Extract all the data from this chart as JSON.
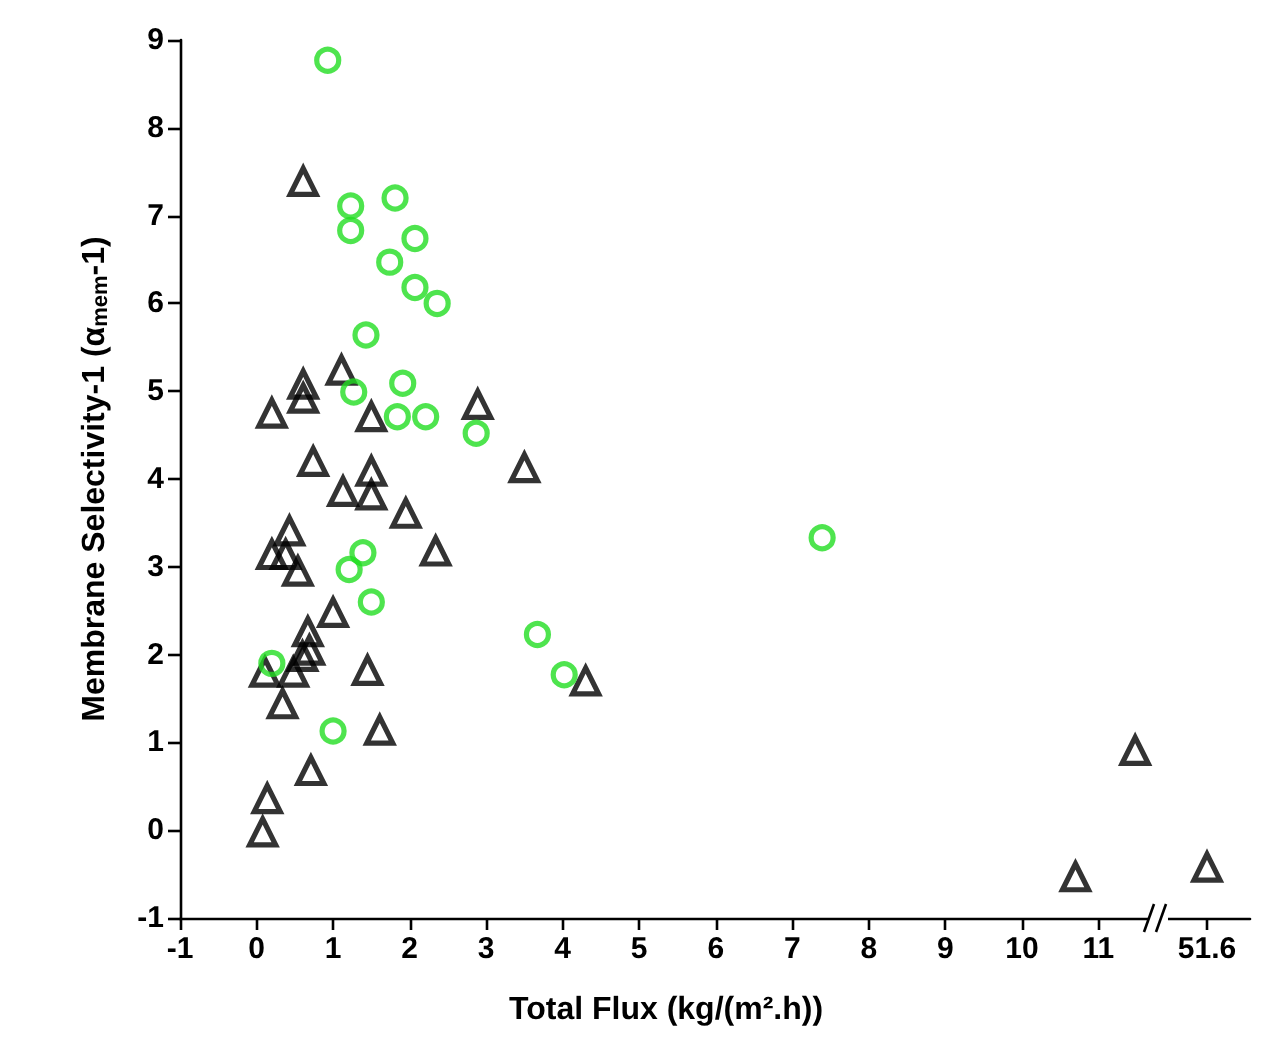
{
  "chart_data": [
    {
      "type": "scatter",
      "xlabel": "Total Flux (kg/(m².h))",
      "ylabel": "Membrane Selectivity-1 (α$_{mem}$-1)",
      "xlim": [
        -1,
        11.7
      ],
      "xticks": [
        -1,
        0,
        1,
        2,
        3,
        4,
        5,
        6,
        7,
        8,
        9,
        10,
        11
      ],
      "ylim": [
        -1,
        9
      ],
      "yticks": [
        -1,
        0,
        1,
        2,
        3,
        4,
        5,
        6,
        7,
        8,
        9
      ],
      "series": [
        {
          "color": "#000000",
          "marker": "triangle",
          "x": [
            0.74,
            1.5,
            1.13,
            1.5,
            1.95,
            2.34,
            0.43,
            0.2,
            0.38,
            0.54,
            1.0,
            0.67,
            0.69,
            0.6,
            0.11,
            0.48,
            0.34,
            1.45,
            1.61,
            0.71,
            0.14,
            0.08,
            0.61,
            0.2,
            0.61,
            0.61,
            1.11,
            1.5,
            2.89,
            4.3,
            10.7,
            11.48
          ],
          "values": [
            4.2,
            4.09,
            3.86,
            3.82,
            3.61,
            3.18,
            3.41,
            3.14,
            3.14,
            2.95,
            2.48,
            2.26,
            2.05,
            1.98,
            1.8,
            1.8,
            1.44,
            1.82,
            1.14,
            0.68,
            0.36,
            -0.02,
            7.39,
            4.75,
            5.08,
            4.92,
            5.24,
            4.71,
            4.85,
            1.7,
            -0.53,
            0.91
          ]
        },
        {
          "color": "#000000",
          "marker": "triangle",
          "x": [
            3.5
          ],
          "values": [
            4.13
          ]
        },
        {
          "color": "#22dd22",
          "marker": "circle",
          "x": [
            0.93,
            1.23,
            1.23,
            1.81,
            1.74,
            2.07,
            1.43,
            1.27,
            1.91,
            1.84,
            2.21,
            2.87,
            1.39,
            1.21,
            1.5,
            1.0,
            0.2,
            7.39,
            3.67,
            4.02
          ],
          "values": [
            8.77,
            7.11,
            6.83,
            7.2,
            6.47,
            6.18,
            5.64,
            4.99,
            5.09,
            4.71,
            4.71,
            4.52,
            3.16,
            2.97,
            2.6,
            1.13,
            1.9,
            3.33,
            2.23,
            1.77
          ]
        },
        {
          "color": "#22dd22",
          "marker": "circle",
          "x": [
            2.07,
            2.36
          ],
          "values": [
            6.74,
            6.0
          ]
        }
      ]
    },
    {
      "type": "scatter",
      "categories": [
        "51.6"
      ],
      "ylim": [
        -1,
        9
      ],
      "yticks": [
        -1,
        0,
        1,
        2,
        3,
        4,
        5,
        6,
        7,
        8,
        9
      ],
      "tick_labels": "x",
      "series": [
        {
          "color": "#000000",
          "marker": "triangle",
          "values": [
            -0.42
          ]
        }
      ]
    }
  ]
}
